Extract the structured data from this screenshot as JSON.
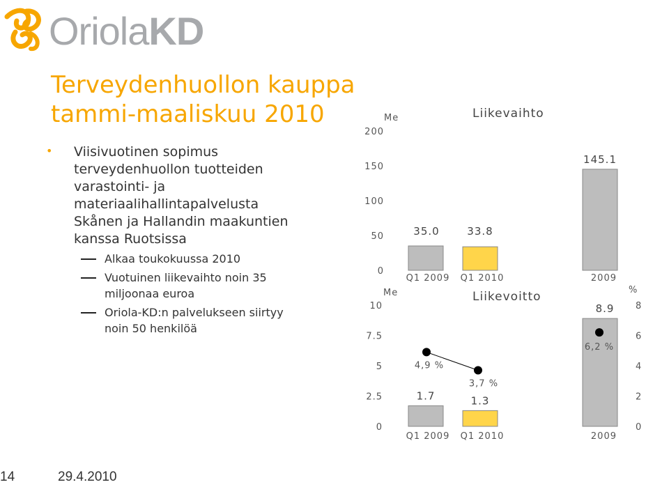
{
  "logo": {
    "text_light": "Oriola",
    "text_bold": "KD"
  },
  "title_line1": "Terveydenhuollon kauppa",
  "title_line2": "tammi-maaliskuu 2010",
  "bullet": "Viisivuotinen sopimus terveydenhuollon tuotteiden varastointi- ja materiaalihallintapalvelusta Skånen ja Hallandin maakuntien kanssa Ruotsissa",
  "bullet_lines": [
    "Viisivuotinen sopimus",
    "terveydenhuollon tuotteiden",
    "varastointi- ja",
    "materiaalihallintapalvelusta",
    "Skånen ja Hallandin maakuntien",
    "kanssa Ruotsissa"
  ],
  "sub_bullets": [
    {
      "lines": [
        "Alkaa toukokuussa 2010"
      ]
    },
    {
      "lines": [
        "Vuotuinen liikevaihto noin 35",
        "miljoonaa euroa"
      ]
    },
    {
      "lines": [
        "Oriola-KD:n palvelukseen siirtyy",
        "noin 50 henkilöä"
      ]
    }
  ],
  "footer": {
    "page": "14",
    "date": "29.4.2010"
  },
  "colors": {
    "accent": "#f7a600",
    "bar_grey": "#bdbdbd",
    "bar_yellow": "#ffd54a",
    "logo_grey": "#a7a9ac"
  },
  "chart_data": [
    {
      "type": "bar",
      "title": "Liikevaihto",
      "unit_label": "Me",
      "categories": [
        "Q1 2009",
        "Q1 2010",
        "2009"
      ],
      "values": [
        35.0,
        33.8,
        145.1
      ],
      "value_labels": [
        "35.0",
        "33.8",
        "145.1"
      ],
      "ylim": [
        0,
        200
      ],
      "yticks": [
        "0",
        "50",
        "100",
        "150",
        "200"
      ],
      "bar_colors": [
        "#bdbdbd",
        "#ffd54a",
        "#bdbdbd"
      ]
    },
    {
      "type": "bar",
      "title": "Liikevoitto",
      "unit_label": "Me",
      "categories": [
        "Q1 2009",
        "Q1 2010",
        "2009"
      ],
      "values": [
        1.7,
        1.3,
        8.9
      ],
      "value_labels": [
        "1.7",
        "1.3",
        "8.9"
      ],
      "ylim": [
        0,
        10
      ],
      "yticks": [
        "0",
        "2.5",
        "5",
        "7.5",
        "10"
      ],
      "bar_colors": [
        "#bdbdbd",
        "#ffd54a",
        "#bdbdbd"
      ],
      "secondary": {
        "unit_label": "%",
        "ylim": [
          0,
          8
        ],
        "yticks": [
          "0",
          "2",
          "4",
          "6",
          "8"
        ],
        "values": [
          4.9,
          3.7,
          6.2
        ],
        "value_labels": [
          "4,9 %",
          "3,7 %",
          "6,2 %"
        ]
      }
    }
  ]
}
